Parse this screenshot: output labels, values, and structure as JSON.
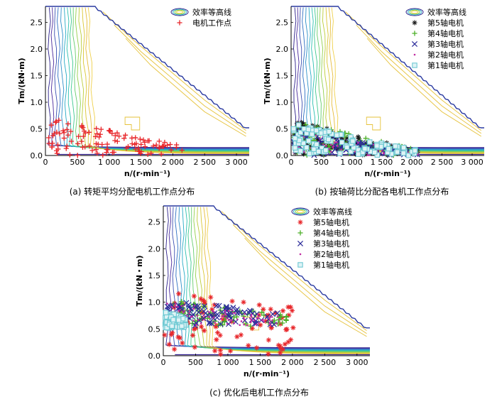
{
  "figure": {
    "captions": {
      "a": "(a) 转矩平均分配电机工作点分布",
      "b": "(b) 按轴荷比分配各电机工作点分布",
      "c": "(c) 优化后电机工作点分布"
    }
  },
  "chart_data": [
    {
      "id": "a",
      "type": "scatter",
      "xlabel": "n/(r·min⁻¹)",
      "ylabel": "Tm/(kN·m)",
      "xlim": [
        0,
        3200
      ],
      "ylim": [
        0,
        2.8
      ],
      "xticks": [
        "0",
        "500",
        "1 000",
        "1 500",
        "2 000",
        "2 500",
        "3 000"
      ],
      "xtick_values": [
        0,
        500,
        1000,
        1500,
        2000,
        2500,
        3000
      ],
      "yticks": [
        "0.0",
        "0.5",
        "1.0",
        "1.5",
        "2.0",
        "2.5"
      ],
      "ytick_values": [
        0,
        0.5,
        1.0,
        1.5,
        2.0,
        2.5
      ],
      "legend": [
        "效率等高线",
        "电机工作点"
      ],
      "legend_position": "top-right",
      "envelope": {
        "n": [
          0,
          780,
          3150,
          3200
        ],
        "t": [
          2.8,
          2.8,
          0.52,
          0.52
        ]
      },
      "series": [
        {
          "name": "电机工作点",
          "marker": "plus",
          "color": "#e8262a",
          "region": {
            "n": [
              40,
              2150
            ],
            "t_min": 0.0,
            "t_max_start": 0.72,
            "t_max_end": 0.18
          }
        }
      ]
    },
    {
      "id": "b",
      "type": "scatter",
      "xlabel": "n/(r·min⁻¹)",
      "ylabel": "Tm/(kN·m)",
      "xlim": [
        0,
        3200
      ],
      "ylim": [
        0,
        2.8
      ],
      "xticks": [
        "0",
        "500",
        "1 000",
        "1 500",
        "2 000",
        "2 500",
        "3 000"
      ],
      "xtick_values": [
        0,
        500,
        1000,
        1500,
        2000,
        2500,
        3000
      ],
      "yticks": [
        "0.0",
        "0.5",
        "1.0",
        "1.5",
        "2.0",
        "2.5"
      ],
      "ytick_values": [
        0,
        0.5,
        1.0,
        1.5,
        2.0,
        2.5
      ],
      "legend": [
        "效率等高线",
        "第5轴电机",
        "第4轴电机",
        "第3轴电机",
        "第2轴电机",
        "第1轴电机"
      ],
      "legend_position": "top-right",
      "envelope": {
        "n": [
          0,
          780,
          3150,
          3200
        ],
        "t": [
          2.8,
          2.8,
          0.52,
          0.52
        ]
      },
      "series": [
        {
          "name": "第5轴电机",
          "marker": "star",
          "color": "#1a1a1a",
          "region": {
            "n": [
              40,
              2100
            ],
            "t_min": 0.0,
            "t_max_start": 0.66,
            "t_max_end": 0.1
          }
        },
        {
          "name": "第4轴电机",
          "marker": "plus",
          "color": "#4caf28",
          "region": {
            "n": [
              40,
              2100
            ],
            "t_min": 0.0,
            "t_max_start": 0.66,
            "t_max_end": 0.1
          }
        },
        {
          "name": "第3轴电机",
          "marker": "x",
          "color": "#2b2b9a",
          "region": {
            "n": [
              40,
              2100
            ],
            "t_min": 0.0,
            "t_max_start": 0.5,
            "t_max_end": 0.08
          }
        },
        {
          "name": "第2轴电机",
          "marker": "dot",
          "color": "#c02aa0",
          "region": {
            "n": [
              40,
              2100
            ],
            "t_min": 0.0,
            "t_max_start": 0.45,
            "t_max_end": 0.08
          }
        },
        {
          "name": "第1轴电机",
          "marker": "square",
          "color": "#6ec9d3",
          "region": {
            "n": [
              40,
              2100
            ],
            "t_min": 0.0,
            "t_max_start": 0.6,
            "t_max_end": 0.1
          }
        }
      ]
    },
    {
      "id": "c",
      "type": "scatter",
      "xlabel": "n/(r·min⁻¹)",
      "ylabel": "Tm/(kN・m)",
      "xlim": [
        0,
        3200
      ],
      "ylim": [
        0,
        2.8
      ],
      "xticks": [
        "0",
        "500",
        "1 000",
        "1 500",
        "2 000",
        "2 500",
        "3 000"
      ],
      "xtick_values": [
        0,
        500,
        1000,
        1500,
        2000,
        2500,
        3000
      ],
      "yticks": [
        "0.0",
        "0.5",
        "1.0",
        "1.5",
        "2.0",
        "2.5"
      ],
      "ytick_values": [
        0,
        0.5,
        1.0,
        1.5,
        2.0,
        2.5
      ],
      "legend": [
        "效率等高线",
        "第5轴电机",
        "第4轴电机",
        "第3轴电机",
        "第2轴电机",
        "第1轴电机"
      ],
      "legend_position": "top-right",
      "envelope": {
        "n": [
          0,
          780,
          3150,
          3200
        ],
        "t": [
          2.8,
          2.8,
          0.52,
          0.52
        ]
      },
      "series": [
        {
          "name": "第5轴电机",
          "marker": "star",
          "color": "#e8262a",
          "region": {
            "n": [
              20,
              2050
            ],
            "t_min": 0.0,
            "t_max_start": 1.2,
            "t_max_end": 0.9
          }
        },
        {
          "name": "第4轴电机",
          "marker": "plus",
          "color": "#4caf28",
          "region": {
            "n": [
              60,
              1950
            ],
            "t_min": 0.55,
            "t_max_start": 1.05,
            "t_max_end": 0.75
          }
        },
        {
          "name": "第3轴电机",
          "marker": "x",
          "color": "#2b2b9a",
          "region": {
            "n": [
              60,
              1800
            ],
            "t_min": 0.55,
            "t_max_start": 1.05,
            "t_max_end": 0.8
          }
        },
        {
          "name": "第2轴电机",
          "marker": "dot",
          "color": "#c02aa0",
          "region": {
            "n": [
              60,
              1800
            ],
            "t_min": 0.55,
            "t_max_start": 1.0,
            "t_max_end": 0.75
          }
        },
        {
          "name": "第1轴电机",
          "marker": "square",
          "color": "#6ec9d3",
          "region": {
            "n": [
              20,
              350
            ],
            "t_min": 0.5,
            "t_max_start": 0.85,
            "t_max_end": 0.7
          }
        }
      ]
    }
  ]
}
